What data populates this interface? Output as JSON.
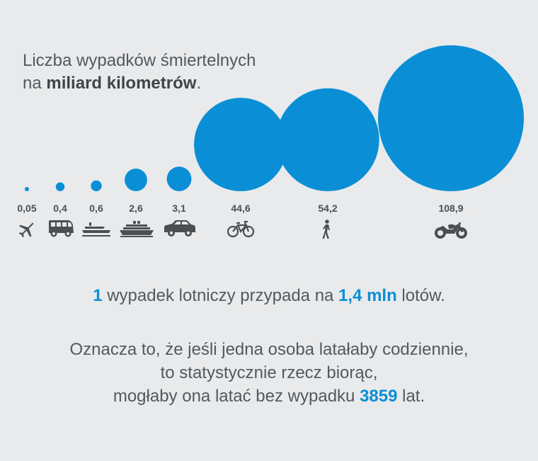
{
  "title": {
    "line1": "Liczba wypadków śmiertelnych",
    "line2_pre": "na ",
    "line2_bold": "miliard kilometrów",
    "line2_post": "."
  },
  "chart_data": {
    "type": "bubble",
    "title": "Liczba wypadków śmiertelnych na miliard kilometrów.",
    "categories": [
      "airplane",
      "bus",
      "ferry",
      "ship",
      "car",
      "bicycle",
      "walking",
      "motorcycle"
    ],
    "labels": [
      "0,05",
      "0,4",
      "0,6",
      "2,6",
      "3,1",
      "44,6",
      "54,2",
      "108,9"
    ],
    "values": [
      0.05,
      0.4,
      0.6,
      2.6,
      3.1,
      44.6,
      54.2,
      108.9
    ],
    "color": "#0a8fd6"
  },
  "icons": [
    "airplane-icon",
    "bus-icon",
    "ferry-icon",
    "ship-icon",
    "car-icon",
    "bicycle-icon",
    "walking-icon",
    "motorcycle-icon"
  ],
  "text1": {
    "num1": "1",
    "mid": " wypadek lotniczy przypada na ",
    "num2": "1,4 mln",
    "end": " lotów."
  },
  "text2": {
    "line1": "Oznacza to, że jeśli jedna osoba latałaby codziennie,",
    "line2": "to statystycznie rzecz biorąc,",
    "line3_pre": "mogłaby ona latać bez wypadku ",
    "line3_num": "3859",
    "line3_post": " lat."
  }
}
